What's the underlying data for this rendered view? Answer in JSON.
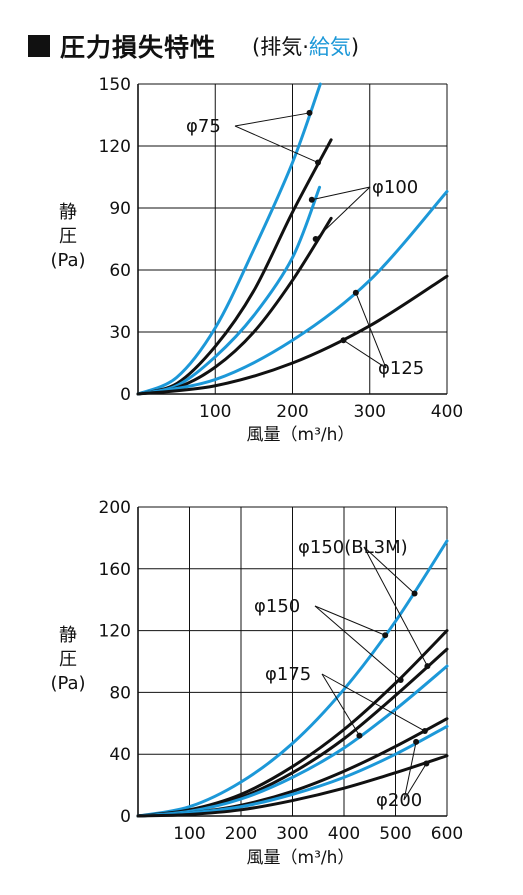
{
  "header": {
    "title": "圧力損失特性",
    "paren_open": "(",
    "subtitle_black": "排気·",
    "subtitle_blue": "給気",
    "paren_close": ")"
  },
  "colors": {
    "exhaust": "#111111",
    "supply": "#1c98d8"
  },
  "chart_data": [
    {
      "type": "line",
      "ylabel": [
        "静",
        "圧",
        "(Pa)"
      ],
      "xlabel": "風量（m³/h）",
      "xlim": [
        0,
        400
      ],
      "ylim": [
        0,
        150
      ],
      "xticks": [
        100,
        200,
        300,
        400
      ],
      "yticks": [
        0,
        30,
        60,
        90,
        120,
        150
      ],
      "grid": true,
      "series": [
        {
          "label": "φ75",
          "color": "supply",
          "x": [
            0,
            50,
            100,
            150,
            200,
            236
          ],
          "y": [
            0,
            8,
            32,
            70,
            112,
            150
          ]
        },
        {
          "label": "φ75",
          "color": "exhaust",
          "x": [
            0,
            50,
            100,
            150,
            200,
            250
          ],
          "y": [
            0,
            5,
            23,
            50,
            88,
            123
          ]
        },
        {
          "label": "φ100",
          "color": "supply",
          "x": [
            0,
            50,
            100,
            150,
            200,
            235
          ],
          "y": [
            0,
            4,
            18,
            38,
            66,
            100
          ]
        },
        {
          "label": "φ100",
          "color": "exhaust",
          "x": [
            0,
            50,
            100,
            150,
            200,
            250
          ],
          "y": [
            0,
            3,
            13,
            30,
            55,
            85
          ]
        },
        {
          "label": "φ125",
          "color": "supply",
          "x": [
            0,
            100,
            200,
            300,
            400
          ],
          "y": [
            0,
            7,
            26,
            55,
            98
          ]
        },
        {
          "label": "φ125",
          "color": "exhaust",
          "x": [
            0,
            100,
            200,
            300,
            400
          ],
          "y": [
            0,
            4,
            15,
            33,
            57
          ]
        }
      ],
      "annotations": [
        {
          "text": "φ75",
          "points": [
            [
              222,
              136
            ],
            [
              233,
              112
            ]
          ]
        },
        {
          "text": "φ100",
          "points": [
            [
              225,
              94
            ],
            [
              230,
              75
            ]
          ]
        },
        {
          "text": "φ125",
          "points": [
            [
              282,
              49
            ],
            [
              266,
              26
            ]
          ]
        }
      ]
    },
    {
      "type": "line",
      "ylabel": [
        "静",
        "圧",
        "(Pa)"
      ],
      "xlabel": "風量（m³/h）",
      "xlim": [
        0,
        600
      ],
      "ylim": [
        0,
        200
      ],
      "xticks": [
        100,
        200,
        300,
        400,
        500,
        600
      ],
      "yticks": [
        0,
        40,
        80,
        120,
        160,
        200
      ],
      "grid": true,
      "series": [
        {
          "label": "φ150(BL3M)",
          "color": "supply",
          "x": [
            0,
            100,
            200,
            300,
            400,
            500,
            600
          ],
          "y": [
            0,
            6,
            22,
            47,
            82,
            126,
            178
          ]
        },
        {
          "label": "φ150(BL3M)",
          "color": "exhaust",
          "x": [
            0,
            100,
            200,
            300,
            400,
            500,
            600
          ],
          "y": [
            0,
            3,
            12,
            28,
            50,
            78,
            108
          ]
        },
        {
          "label": "φ150",
          "color": "exhaust",
          "x": [
            0,
            100,
            200,
            300,
            400,
            500,
            600
          ],
          "y": [
            0,
            4,
            14,
            32,
            56,
            86,
            120
          ]
        },
        {
          "label": "φ150",
          "color": "supply",
          "x": [
            0,
            100,
            200,
            300,
            400,
            500,
            600
          ],
          "y": [
            0,
            3,
            11,
            25,
            44,
            69,
            97
          ]
        },
        {
          "label": "φ175",
          "color": "exhaust",
          "x": [
            0,
            100,
            200,
            300,
            400,
            500,
            600
          ],
          "y": [
            0,
            2,
            7,
            16,
            29,
            45,
            63
          ]
        },
        {
          "label": "φ175",
          "color": "supply",
          "x": [
            0,
            100,
            200,
            300,
            400,
            500,
            600
          ],
          "y": [
            0,
            2,
            6,
            14,
            25,
            40,
            58
          ]
        },
        {
          "label": "φ200",
          "color": "exhaust",
          "x": [
            0,
            100,
            200,
            300,
            400,
            500,
            600
          ],
          "y": [
            0,
            1,
            4,
            10,
            18,
            28,
            39
          ]
        }
      ],
      "annotations": [
        {
          "text": "φ150(BL3M)",
          "points": [
            [
              537,
              144
            ],
            [
              562,
              97
            ]
          ]
        },
        {
          "text": "φ150",
          "points": [
            [
              480,
              117
            ],
            [
              510,
              88
            ]
          ]
        },
        {
          "text": "φ175",
          "points": [
            [
              430,
              52
            ],
            [
              557,
              55
            ]
          ]
        },
        {
          "text": "φ200",
          "points": [
            [
              540,
              48
            ],
            [
              560,
              34
            ]
          ]
        }
      ]
    }
  ]
}
